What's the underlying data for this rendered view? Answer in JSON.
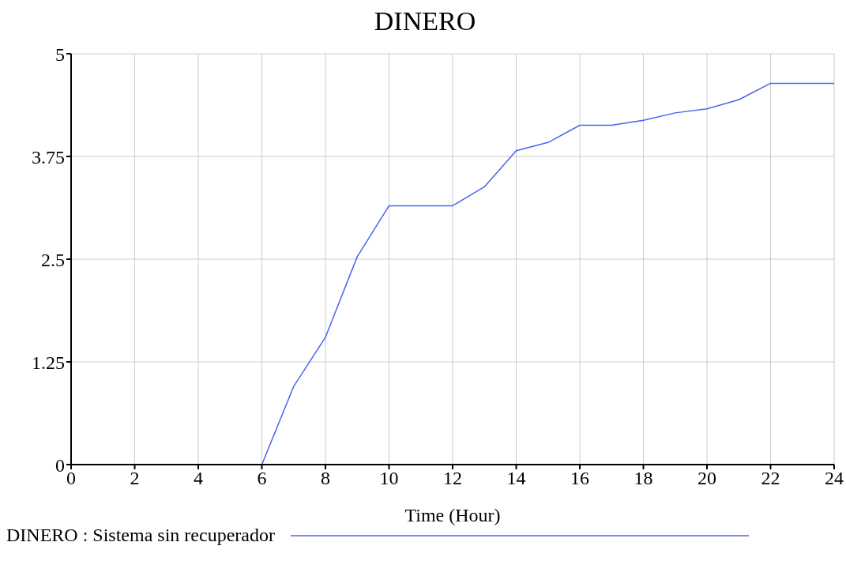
{
  "chart_data": {
    "type": "line",
    "title": "DINERO",
    "xlabel": "Time (Hour)",
    "x": [
      0,
      6,
      7,
      8,
      9,
      10,
      12,
      13,
      14,
      15,
      16,
      17,
      18,
      19,
      20,
      21,
      22,
      24
    ],
    "series": [
      {
        "name": "DINERO : Sistema sin recuperador",
        "color": "#4a63f0",
        "values": [
          0,
          0,
          0.95,
          1.55,
          2.53,
          3.15,
          3.15,
          3.38,
          3.82,
          3.92,
          4.13,
          4.13,
          4.19,
          4.28,
          4.33,
          4.44,
          4.64,
          4.64
        ]
      }
    ],
    "xlim": [
      0,
      24
    ],
    "xticks": [
      0,
      2,
      4,
      6,
      8,
      10,
      12,
      14,
      16,
      18,
      20,
      22,
      24
    ],
    "ylim": [
      0,
      5
    ],
    "yticks": [
      0,
      1.25,
      2.5,
      3.75,
      5
    ],
    "grid": true,
    "legend": "bottom left",
    "marker": "none",
    "line_style": "solid"
  }
}
